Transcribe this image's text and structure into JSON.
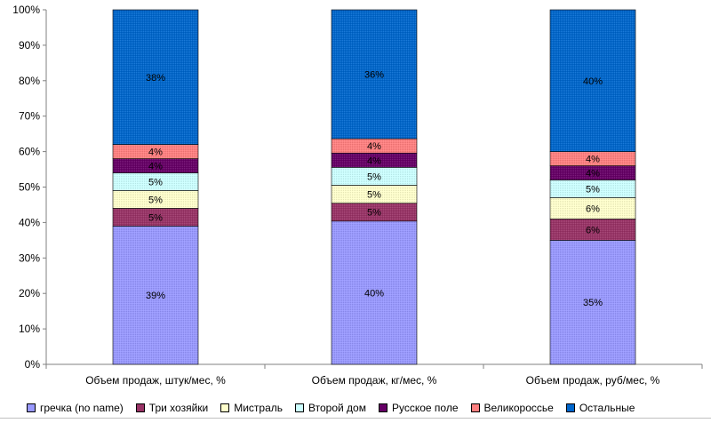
{
  "chart_data": {
    "type": "bar",
    "stacked": true,
    "percent_stacked": true,
    "categories": [
      "Объем продаж, штук/мес, %",
      "Объем продаж, кг/мес, %",
      "Объем продаж, руб/мес, %"
    ],
    "y_ticks": [
      "0%",
      "10%",
      "20%",
      "30%",
      "40%",
      "50%",
      "60%",
      "70%",
      "80%",
      "90%",
      "100%"
    ],
    "ylim": [
      0,
      100
    ],
    "grid": false,
    "legend_position": "bottom",
    "series": [
      {
        "name": "гречка (no name)",
        "color": "#9999ff",
        "values": [
          39,
          40,
          35
        ],
        "labels": [
          "39%",
          "40%",
          "35%"
        ]
      },
      {
        "name": "Три хозяйки",
        "color": "#993366",
        "values": [
          5,
          5,
          6
        ],
        "labels": [
          "5%",
          "5%",
          "6%"
        ]
      },
      {
        "name": "Мистраль",
        "color": "#ffffcc",
        "values": [
          5,
          5,
          6
        ],
        "labels": [
          "5%",
          "5%",
          "6%"
        ]
      },
      {
        "name": "Второй дом",
        "color": "#ccffff",
        "values": [
          5,
          5,
          5
        ],
        "labels": [
          "5%",
          "5%",
          "5%"
        ]
      },
      {
        "name": "Русское поле",
        "color": "#660066",
        "values": [
          4,
          4,
          4
        ],
        "labels": [
          "4%",
          "4%",
          "4%"
        ]
      },
      {
        "name": "Великороссье",
        "color": "#ff8080",
        "values": [
          4,
          4,
          4
        ],
        "labels": [
          "4%",
          "4%",
          "4%"
        ]
      },
      {
        "name": "Остальные",
        "color": "#0066cc",
        "values": [
          38,
          36,
          40
        ],
        "labels": [
          "38%",
          "36%",
          "40%"
        ]
      }
    ]
  }
}
